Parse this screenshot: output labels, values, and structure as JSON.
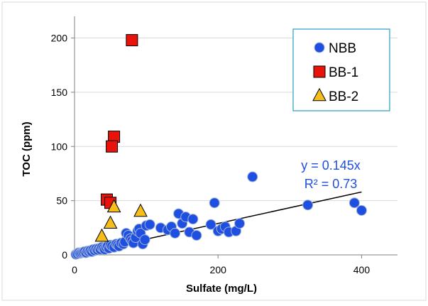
{
  "chart_data": {
    "type": "scatter",
    "xlabel": "Sulfate (mg/L)",
    "ylabel": "TOC (ppm)",
    "xlim": [
      0,
      450
    ],
    "ylim": [
      0,
      220
    ],
    "x_ticks": [
      0,
      200,
      400
    ],
    "y_ticks": [
      0,
      50,
      100,
      150,
      200
    ],
    "x_tick_labels": [
      "0",
      "200",
      "400"
    ],
    "y_tick_labels": [
      "0",
      "50",
      "100",
      "150",
      "200"
    ],
    "grid": "horizontal",
    "legend_position": "top-right",
    "series": [
      {
        "name": "NBB",
        "marker": "circle",
        "color": "#1f4fe0",
        "points": [
          [
            2,
            0.5
          ],
          [
            4,
            1
          ],
          [
            6,
            2
          ],
          [
            8,
            1.5
          ],
          [
            10,
            2
          ],
          [
            12,
            2.5
          ],
          [
            14,
            3
          ],
          [
            16,
            2
          ],
          [
            18,
            3.5
          ],
          [
            20,
            3
          ],
          [
            22,
            4
          ],
          [
            24,
            3
          ],
          [
            26,
            5
          ],
          [
            28,
            4
          ],
          [
            30,
            5.5
          ],
          [
            32,
            4.5
          ],
          [
            34,
            6
          ],
          [
            36,
            5
          ],
          [
            38,
            7
          ],
          [
            40,
            6
          ],
          [
            42,
            5
          ],
          [
            44,
            7
          ],
          [
            46,
            8
          ],
          [
            48,
            6
          ],
          [
            50,
            9
          ],
          [
            52,
            8
          ],
          [
            55,
            7
          ],
          [
            58,
            10
          ],
          [
            60,
            9
          ],
          [
            62,
            8
          ],
          [
            65,
            11
          ],
          [
            68,
            10
          ],
          [
            70,
            12
          ],
          [
            72,
            20
          ],
          [
            75,
            18
          ],
          [
            78,
            15
          ],
          [
            80,
            13
          ],
          [
            82,
            11
          ],
          [
            85,
            16
          ],
          [
            88,
            22
          ],
          [
            90,
            24
          ],
          [
            92,
            20
          ],
          [
            95,
            10
          ],
          [
            98,
            14
          ],
          [
            100,
            27
          ],
          [
            105,
            28
          ],
          [
            120,
            25
          ],
          [
            130,
            23
          ],
          [
            135,
            26
          ],
          [
            140,
            20
          ],
          [
            145,
            38
          ],
          [
            150,
            29
          ],
          [
            155,
            35
          ],
          [
            160,
            21
          ],
          [
            165,
            33
          ],
          [
            170,
            18
          ],
          [
            190,
            28
          ],
          [
            195,
            48
          ],
          [
            200,
            22
          ],
          [
            205,
            24
          ],
          [
            210,
            26
          ],
          [
            215,
            21
          ],
          [
            225,
            22
          ],
          [
            230,
            29
          ],
          [
            248,
            72
          ],
          [
            325,
            46
          ],
          [
            390,
            48
          ],
          [
            400,
            41
          ]
        ]
      },
      {
        "name": "BB-1",
        "marker": "square",
        "color": "#e8140c",
        "points": [
          [
            80,
            198
          ],
          [
            55,
            109
          ],
          [
            52,
            100
          ],
          [
            45,
            51
          ],
          [
            50,
            48
          ]
        ]
      },
      {
        "name": "BB-2",
        "marker": "triangle",
        "color": "#f7be1a",
        "points": [
          [
            38,
            17
          ],
          [
            50,
            29
          ],
          [
            55,
            44
          ],
          [
            92,
            40
          ]
        ]
      }
    ],
    "trendline": {
      "slope": 0.145,
      "x_range": [
        0,
        400
      ],
      "equation": "y = 0.145x",
      "r_squared": "R² = 0.73"
    }
  }
}
